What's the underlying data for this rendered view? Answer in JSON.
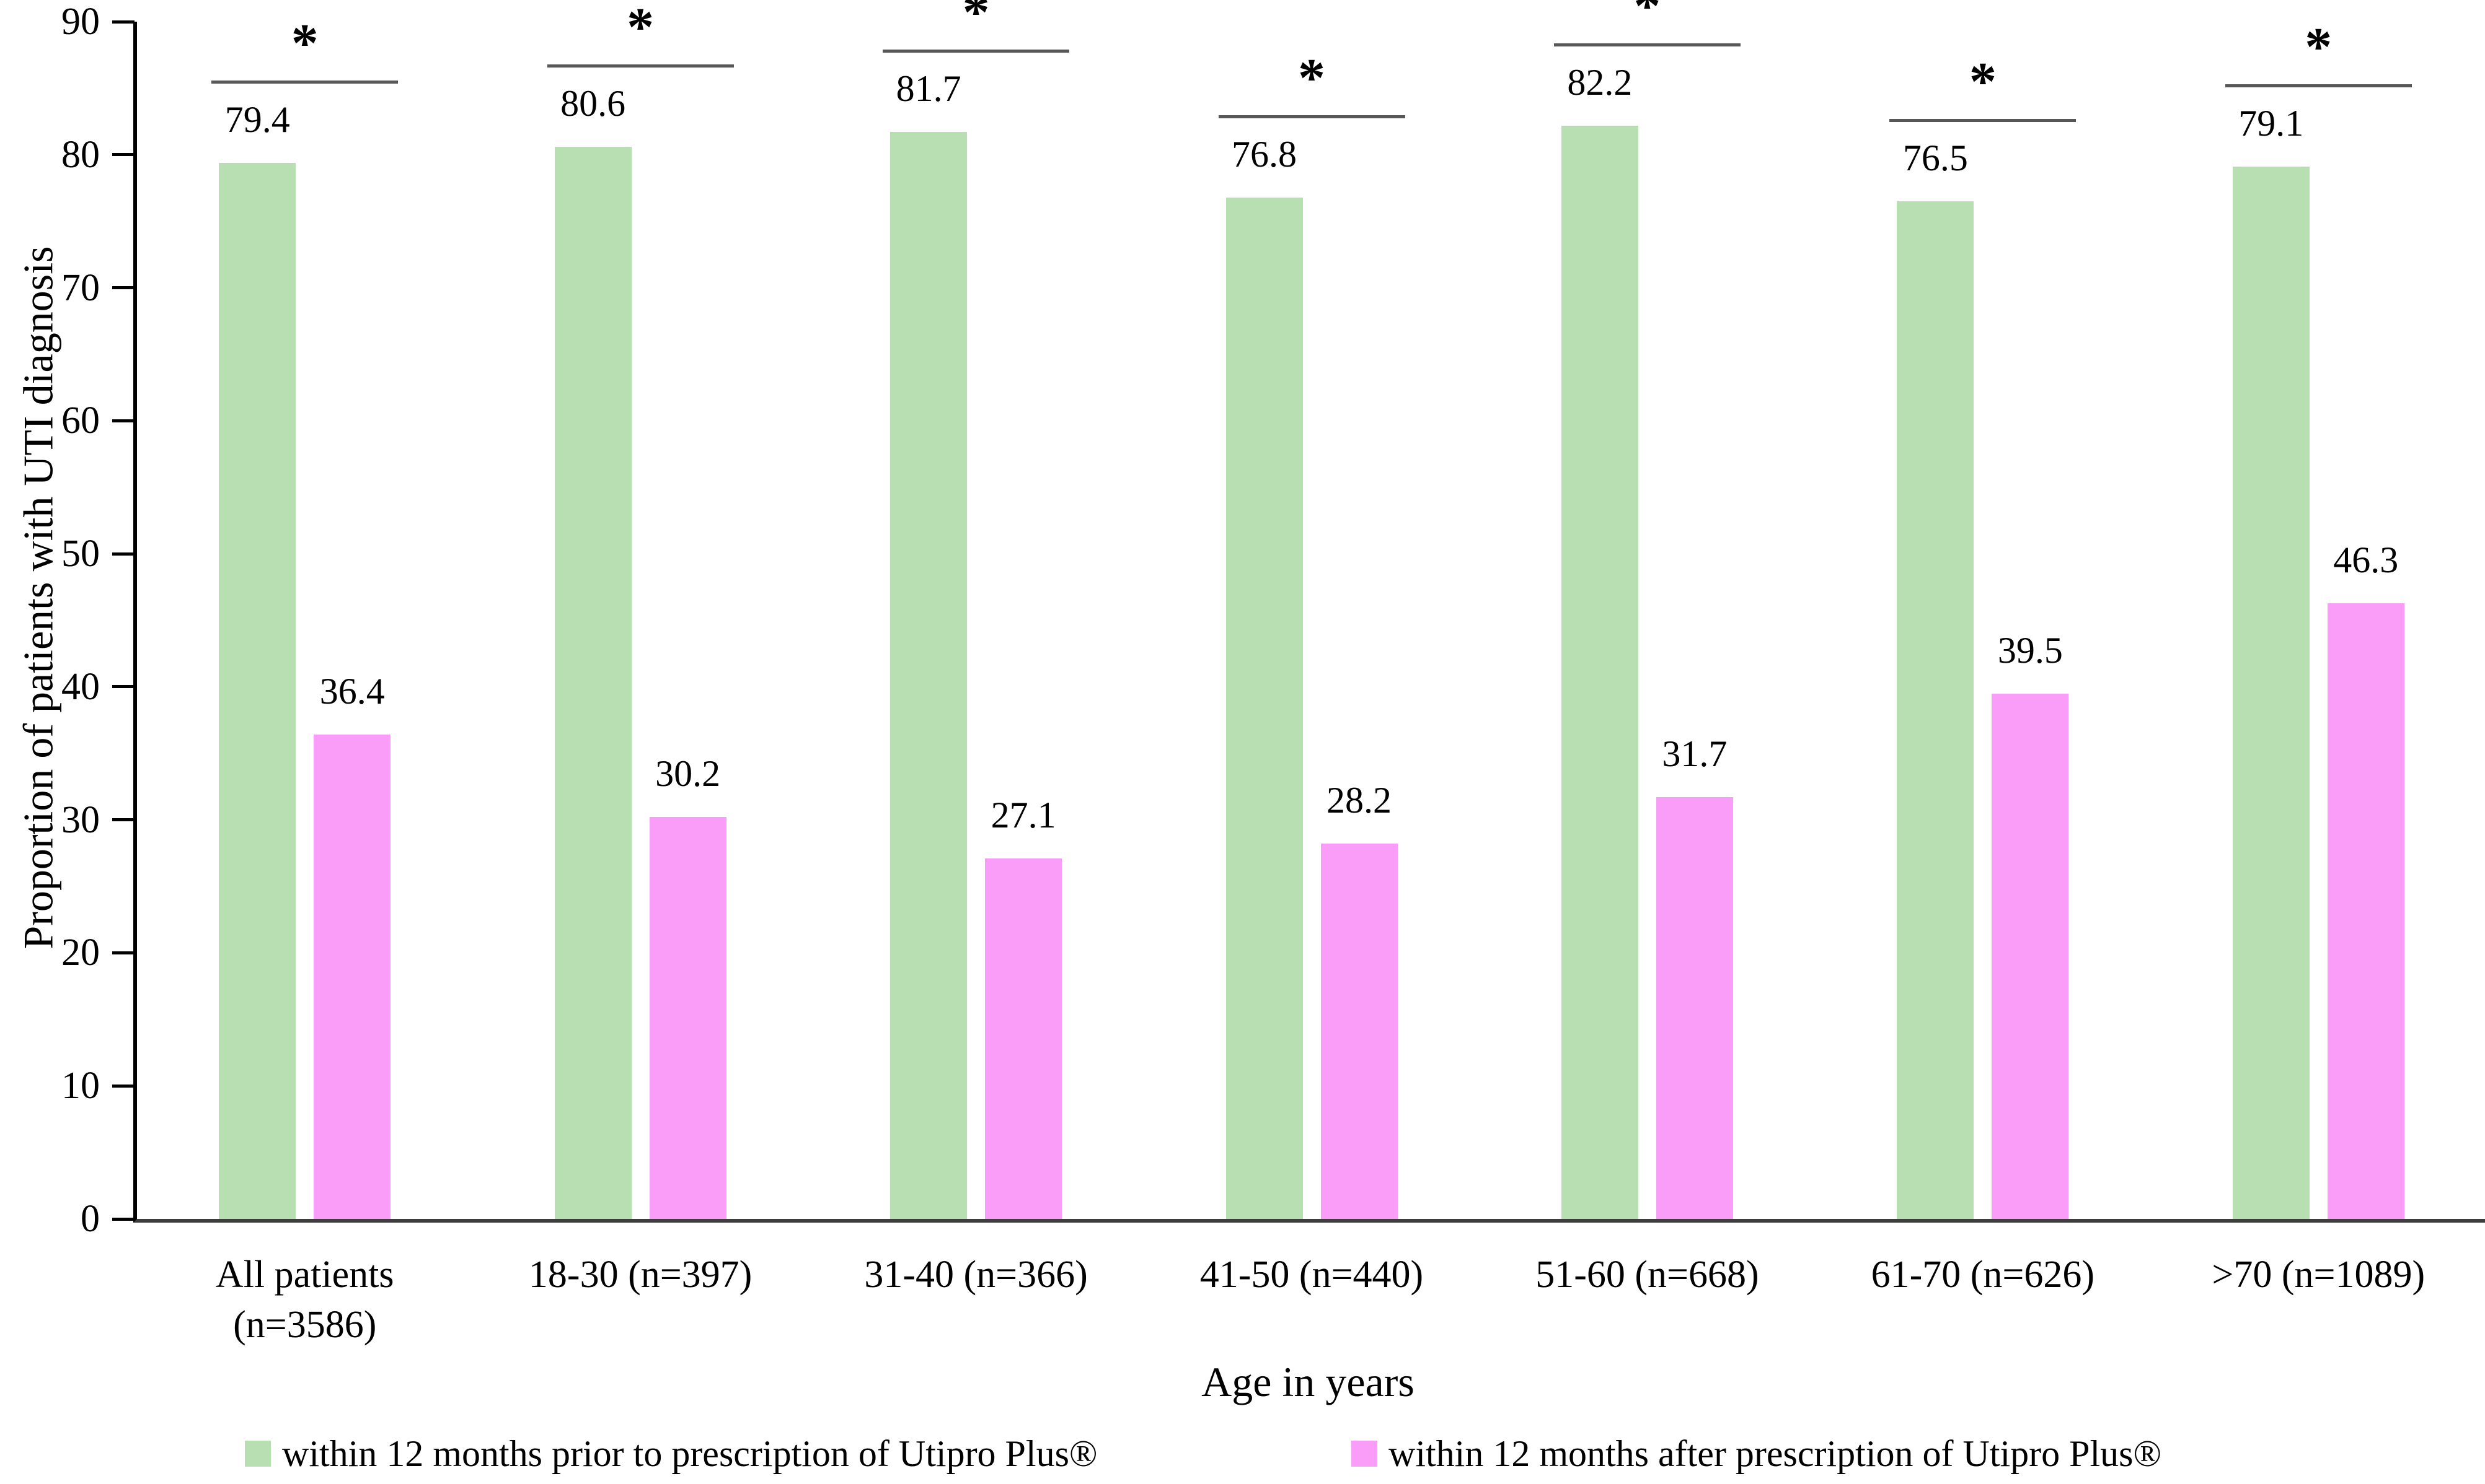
{
  "chart_data": {
    "type": "bar",
    "title": "",
    "categories": [
      "All patients (n=3586)",
      "18-30 (n=397)",
      "31-40 (n=366)",
      "41-50 (n=440)",
      "51-60 (n=668)",
      "61-70 (n=626)",
      ">70 (n=1089)"
    ],
    "category_lines": [
      [
        "All patients",
        "(n=3586)"
      ],
      [
        "18-30 (n=397)"
      ],
      [
        "31-40 (n=366)"
      ],
      [
        "41-50 (n=440)"
      ],
      [
        "51-60 (n=668)"
      ],
      [
        "61-70 (n=626)"
      ],
      [
        ">70 (n=1089)"
      ]
    ],
    "series": [
      {
        "name": "within 12 months prior to prescription of Utipro Plus®",
        "color": "#b7dfb1",
        "values": [
          79.4,
          80.6,
          81.7,
          76.8,
          82.2,
          76.5,
          79.1
        ]
      },
      {
        "name": "within 12 months after prescription of Utipro Plus®",
        "color": "#fa9df8",
        "values": [
          36.4,
          30.2,
          27.1,
          28.2,
          31.7,
          39.5,
          46.3
        ]
      }
    ],
    "xlabel": "Age in years",
    "ylabel": "Proportion of patients with UTI diagnosis",
    "ylim": [
      0,
      90
    ],
    "yticks": [
      0,
      10,
      20,
      30,
      40,
      50,
      60,
      70,
      80,
      90
    ],
    "grid": false,
    "legend_position": "bottom",
    "significance": {
      "marker": "*",
      "line_color": "#575757",
      "groups_marked": [
        true,
        true,
        true,
        true,
        true,
        true,
        true
      ]
    },
    "colors": {
      "axis": "#000000",
      "baseline": "#3d3d3d",
      "text": "#000000"
    }
  }
}
